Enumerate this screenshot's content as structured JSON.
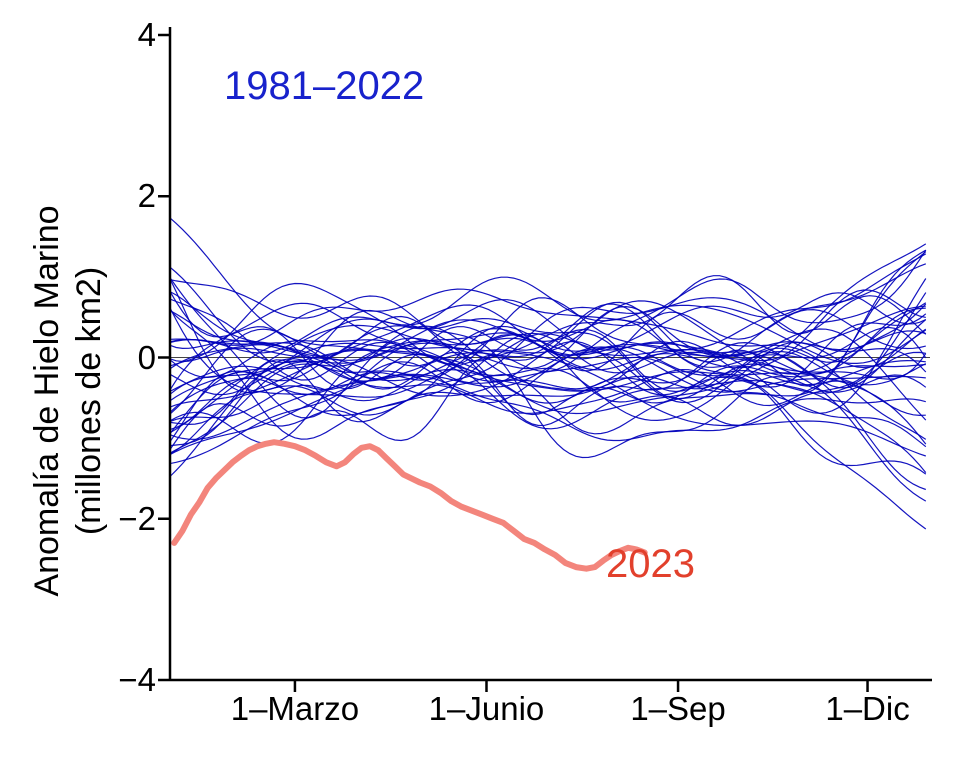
{
  "chart_data": {
    "type": "line",
    "title": "",
    "xlabel": "",
    "ylabel_line1": "Anomalía de Hielo Marino",
    "ylabel_line2": "(millones de km2)",
    "ylim": [
      -4,
      4
    ],
    "xlim_days": [
      0,
      365
    ],
    "grid": false,
    "zero_line": true,
    "yticks": [
      {
        "value": 4,
        "label": "4"
      },
      {
        "value": 2,
        "label": "2"
      },
      {
        "value": 0,
        "label": "0"
      },
      {
        "value": -2,
        "label": "−2"
      },
      {
        "value": -4,
        "label": "−4"
      }
    ],
    "xticks": [
      {
        "day": 60,
        "label": "1–Marzo"
      },
      {
        "day": 152,
        "label": "1–Junio"
      },
      {
        "day": 244,
        "label": "1–Sep"
      },
      {
        "day": 335,
        "label": "1–Dic"
      }
    ],
    "annotations": [
      {
        "id": "ensemble-label",
        "text": "1981–2022",
        "color": "#1822cc"
      },
      {
        "id": "label-2023",
        "text": "2023",
        "color": "#e2402c"
      }
    ],
    "series": {
      "ensemble": {
        "name": "1981–2022",
        "color": "#0000bb",
        "line_width": 1.2,
        "years_count": 42,
        "seed": 11,
        "base_amplitude": 1.5,
        "edge_amplitude_left": 1.5,
        "edge_amplitude_right": 1.8,
        "typical_range": [
          -1.5,
          1.5
        ],
        "extremes": {
          "early_max": 2.5,
          "late_min": -2.3
        }
      },
      "y2023": {
        "name": "2023",
        "color": "#f3857c",
        "line_width": 6,
        "points_day_value": [
          [
            2,
            -2.3
          ],
          [
            6,
            -2.15
          ],
          [
            10,
            -1.95
          ],
          [
            14,
            -1.8
          ],
          [
            18,
            -1.62
          ],
          [
            22,
            -1.5
          ],
          [
            26,
            -1.4
          ],
          [
            30,
            -1.3
          ],
          [
            34,
            -1.22
          ],
          [
            38,
            -1.15
          ],
          [
            42,
            -1.1
          ],
          [
            46,
            -1.07
          ],
          [
            50,
            -1.05
          ],
          [
            55,
            -1.07
          ],
          [
            60,
            -1.1
          ],
          [
            65,
            -1.15
          ],
          [
            70,
            -1.22
          ],
          [
            75,
            -1.3
          ],
          [
            80,
            -1.35
          ],
          [
            84,
            -1.3
          ],
          [
            88,
            -1.2
          ],
          [
            92,
            -1.12
          ],
          [
            96,
            -1.1
          ],
          [
            100,
            -1.15
          ],
          [
            104,
            -1.25
          ],
          [
            108,
            -1.35
          ],
          [
            112,
            -1.45
          ],
          [
            116,
            -1.5
          ],
          [
            120,
            -1.55
          ],
          [
            125,
            -1.6
          ],
          [
            130,
            -1.68
          ],
          [
            135,
            -1.78
          ],
          [
            140,
            -1.85
          ],
          [
            145,
            -1.9
          ],
          [
            150,
            -1.95
          ],
          [
            155,
            -2.0
          ],
          [
            160,
            -2.05
          ],
          [
            165,
            -2.15
          ],
          [
            170,
            -2.25
          ],
          [
            175,
            -2.3
          ],
          [
            180,
            -2.38
          ],
          [
            185,
            -2.45
          ],
          [
            190,
            -2.55
          ],
          [
            195,
            -2.6
          ],
          [
            200,
            -2.62
          ],
          [
            204,
            -2.6
          ],
          [
            208,
            -2.52
          ],
          [
            212,
            -2.45
          ],
          [
            216,
            -2.4
          ],
          [
            220,
            -2.36
          ],
          [
            224,
            -2.38
          ],
          [
            228,
            -2.42
          ]
        ]
      }
    }
  }
}
